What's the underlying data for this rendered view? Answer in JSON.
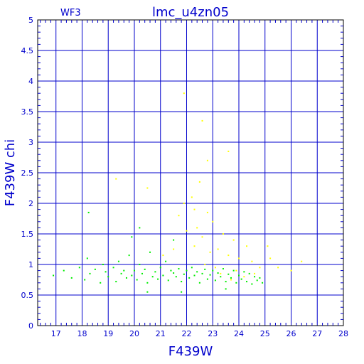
{
  "chart_data": {
    "type": "scatter",
    "title": "lmc_u4zn05",
    "corner_label": "WF3",
    "xlabel": "F439W",
    "ylabel": "F439W  chi",
    "xlim": [
      16.3,
      28.0
    ],
    "ylim": [
      0,
      5
    ],
    "x_ticks": [
      17,
      18,
      19,
      20,
      21,
      22,
      23,
      24,
      25,
      26,
      27,
      28
    ],
    "y_ticks": [
      0,
      0.5,
      1,
      1.5,
      2,
      2.5,
      3,
      3.5,
      4,
      4.5,
      5
    ],
    "x_tick_labels": [
      "17",
      "18",
      "19",
      "20",
      "21",
      "22",
      "23",
      "24",
      "25",
      "26",
      "27",
      "28"
    ],
    "y_tick_labels": [
      "0",
      "0.5",
      "1",
      "1.5",
      "2",
      "2.5",
      "3",
      "3.5",
      "4",
      "4.5",
      "5"
    ],
    "grid": true,
    "colors": {
      "axes": "#0000cc",
      "frame": "#000000",
      "series_green": "#00ee00",
      "series_yellow": "#ffff00"
    },
    "series": [
      {
        "color": "#00ee00",
        "points": [
          [
            16.9,
            0.82
          ],
          [
            17.3,
            0.9
          ],
          [
            17.6,
            0.78
          ],
          [
            17.9,
            0.95
          ],
          [
            18.1,
            0.75
          ],
          [
            18.2,
            1.1
          ],
          [
            18.3,
            0.85
          ],
          [
            18.5,
            0.92
          ],
          [
            18.7,
            0.7
          ],
          [
            18.8,
            1.0
          ],
          [
            18.9,
            0.88
          ],
          [
            19.0,
            0.8
          ],
          [
            19.2,
            0.95
          ],
          [
            19.3,
            0.72
          ],
          [
            19.4,
            1.05
          ],
          [
            19.5,
            0.85
          ],
          [
            19.6,
            0.9
          ],
          [
            19.7,
            0.78
          ],
          [
            19.8,
            1.15
          ],
          [
            19.9,
            0.82
          ],
          [
            20.0,
            0.9
          ],
          [
            20.1,
            0.75
          ],
          [
            20.2,
            1.0
          ],
          [
            20.3,
            0.85
          ],
          [
            20.4,
            0.92
          ],
          [
            20.5,
            0.7
          ],
          [
            20.6,
            1.2
          ],
          [
            20.7,
            0.8
          ],
          [
            20.8,
            0.88
          ],
          [
            20.9,
            0.76
          ],
          [
            21.0,
            0.95
          ],
          [
            21.1,
            0.82
          ],
          [
            21.2,
            1.05
          ],
          [
            21.3,
            0.74
          ],
          [
            21.4,
            0.9
          ],
          [
            21.5,
            0.86
          ],
          [
            21.6,
            0.8
          ],
          [
            21.7,
            0.93
          ],
          [
            21.8,
            0.72
          ],
          [
            21.9,
            0.84
          ],
          [
            22.0,
            0.9
          ],
          [
            22.1,
            0.78
          ],
          [
            22.2,
            0.95
          ],
          [
            22.3,
            0.82
          ],
          [
            22.4,
            0.88
          ],
          [
            22.5,
            0.7
          ],
          [
            22.6,
            0.85
          ],
          [
            22.7,
            0.92
          ],
          [
            22.8,
            0.76
          ],
          [
            22.9,
            0.83
          ],
          [
            23.0,
            0.9
          ],
          [
            23.1,
            0.74
          ],
          [
            23.2,
            0.86
          ],
          [
            23.3,
            0.8
          ],
          [
            23.4,
            0.93
          ],
          [
            23.5,
            0.72
          ],
          [
            23.6,
            0.84
          ],
          [
            23.7,
            0.78
          ],
          [
            23.8,
            0.9
          ],
          [
            23.9,
            0.7
          ],
          [
            24.0,
            0.82
          ],
          [
            24.1,
            0.76
          ],
          [
            24.2,
            0.88
          ],
          [
            24.3,
            0.72
          ],
          [
            24.4,
            0.85
          ],
          [
            24.5,
            0.68
          ],
          [
            24.6,
            0.8
          ],
          [
            24.7,
            0.74
          ],
          [
            24.8,
            0.78
          ],
          [
            24.9,
            0.7
          ],
          [
            18.25,
            1.85
          ],
          [
            20.2,
            1.6
          ],
          [
            21.5,
            1.4
          ],
          [
            19.9,
            1.45
          ],
          [
            20.5,
            0.55
          ],
          [
            21.8,
            0.55
          ],
          [
            23.5,
            0.6
          ]
        ]
      },
      {
        "color": "#ffff00",
        "points": [
          [
            19.3,
            2.4
          ],
          [
            20.5,
            2.25
          ],
          [
            21.9,
            3.8
          ],
          [
            22.8,
            2.7
          ],
          [
            23.6,
            2.85
          ],
          [
            22.6,
            3.35
          ],
          [
            22.5,
            2.35
          ],
          [
            22.2,
            2.1
          ],
          [
            21.9,
            2.0
          ],
          [
            22.3,
            1.9
          ],
          [
            21.7,
            1.8
          ],
          [
            22.8,
            1.85
          ],
          [
            23.0,
            1.7
          ],
          [
            22.4,
            1.6
          ],
          [
            22.0,
            1.55
          ],
          [
            23.4,
            1.5
          ],
          [
            22.6,
            1.45
          ],
          [
            23.8,
            1.4
          ],
          [
            24.3,
            1.3
          ],
          [
            23.2,
            1.25
          ],
          [
            22.9,
            1.2
          ],
          [
            23.6,
            1.15
          ],
          [
            24.0,
            1.1
          ],
          [
            24.5,
            1.05
          ],
          [
            25.2,
            1.1
          ],
          [
            25.5,
            0.95
          ],
          [
            26.0,
            0.9
          ],
          [
            26.4,
            1.05
          ],
          [
            24.8,
            0.95
          ],
          [
            23.9,
            0.9
          ],
          [
            23.3,
            0.85
          ],
          [
            24.2,
            0.8
          ],
          [
            23.7,
            0.75
          ],
          [
            24.6,
            0.85
          ],
          [
            22.7,
            1.0
          ],
          [
            23.1,
            0.95
          ],
          [
            22.3,
            1.3
          ],
          [
            21.5,
            1.25
          ],
          [
            21.1,
            1.15
          ],
          [
            25.1,
            1.3
          ]
        ]
      }
    ]
  }
}
